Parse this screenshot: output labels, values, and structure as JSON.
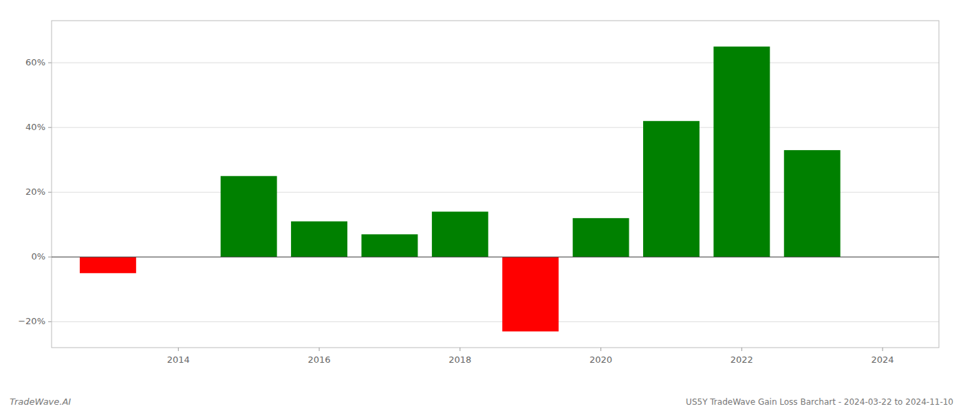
{
  "chart_data": {
    "type": "bar",
    "x": [
      2013,
      2015,
      2016,
      2017,
      2018,
      2019,
      2020,
      2021,
      2022,
      2023
    ],
    "values": [
      -5.0,
      25.0,
      11.0,
      7.0,
      14.0,
      -23.0,
      12.0,
      42.0,
      65.0,
      33.0
    ],
    "colors": [
      "#ff0000",
      "#008000",
      "#008000",
      "#008000",
      "#008000",
      "#ff0000",
      "#008000",
      "#008000",
      "#008000",
      "#008000"
    ],
    "xlim": [
      2012.2,
      2024.8
    ],
    "xticks": [
      2014,
      2016,
      2018,
      2020,
      2022,
      2024
    ],
    "ylim": [
      -28,
      73
    ],
    "yticks": [
      {
        "value": -20,
        "label": "−20%"
      },
      {
        "value": 0,
        "label": "0%"
      },
      {
        "value": 20,
        "label": "20%"
      },
      {
        "value": 40,
        "label": "40%"
      },
      {
        "value": 60,
        "label": "60%"
      }
    ],
    "grid": true,
    "annotations": [
      "TradeWave.AI",
      "US5Y TradeWave Gain Loss Barchart - 2024-03-22 to 2024-11-10"
    ]
  }
}
